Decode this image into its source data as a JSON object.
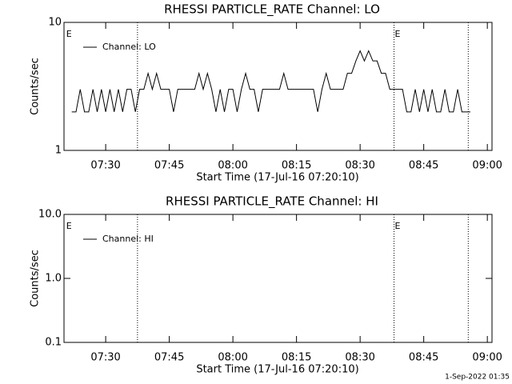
{
  "chart_data": [
    {
      "type": "line",
      "title": "RHESSI PARTICLE_RATE Channel: LO",
      "x_label": "Start Time (17-Jul-16 07:20:10)",
      "y_label": "Counts/sec",
      "log_y": true,
      "ylim": [
        1,
        10
      ],
      "yticks": [
        1,
        10
      ],
      "xlim": [
        440.17,
        541.1
      ],
      "xticks": [
        {
          "value": 450,
          "label": "07:30"
        },
        {
          "value": 465,
          "label": "07:45"
        },
        {
          "value": 480,
          "label": "08:00"
        },
        {
          "value": 495,
          "label": "08:15"
        },
        {
          "value": 510,
          "label": "08:30"
        },
        {
          "value": 525,
          "label": "08:45"
        },
        {
          "value": 540,
          "label": "09:00"
        }
      ],
      "vlines": [
        457.5,
        518,
        535.5
      ],
      "event_labels": [
        {
          "x": 440.5,
          "label": "E"
        },
        {
          "x": 518,
          "label": "E"
        }
      ],
      "legend": "upper left",
      "x": [
        442,
        443,
        444,
        445,
        446,
        447,
        448,
        449,
        450,
        451,
        452,
        453,
        454,
        455,
        456,
        457,
        458,
        459,
        460,
        461,
        462,
        463,
        464,
        465,
        466,
        467,
        468,
        469,
        470,
        471,
        472,
        473,
        474,
        475,
        476,
        477,
        478,
        479,
        480,
        481,
        482,
        483,
        484,
        485,
        486,
        487,
        488,
        489,
        490,
        491,
        492,
        493,
        494,
        495,
        496,
        497,
        498,
        499,
        500,
        501,
        502,
        503,
        504,
        505,
        506,
        507,
        508,
        509,
        510,
        511,
        512,
        513,
        514,
        515,
        516,
        517,
        518,
        519,
        520,
        521,
        522,
        523,
        524,
        525,
        526,
        527,
        528,
        529,
        530,
        531,
        532,
        533,
        534,
        535,
        536
      ],
      "series": [
        {
          "name": "Channel: LO",
          "color": "#000000",
          "values": [
            2,
            2,
            3,
            2,
            2,
            3,
            2,
            3,
            2,
            3,
            2,
            3,
            2,
            3,
            3,
            2,
            3,
            3,
            4,
            3,
            4,
            3,
            3,
            3,
            2,
            3,
            3,
            3,
            3,
            3,
            4,
            3,
            4,
            3,
            2,
            3,
            2,
            3,
            3,
            2,
            3,
            4,
            3,
            3,
            2,
            3,
            3,
            3,
            3,
            3,
            4,
            3,
            3,
            3,
            3,
            3,
            3,
            3,
            2,
            3,
            4,
            3,
            3,
            3,
            3,
            4,
            4,
            5,
            6,
            5,
            6,
            5,
            5,
            4,
            4,
            3,
            3,
            3,
            3,
            2,
            2,
            3,
            2,
            3,
            2,
            3,
            2,
            2,
            3,
            2,
            2,
            3,
            2,
            2,
            2
          ]
        }
      ]
    },
    {
      "type": "line",
      "title": "RHESSI PARTICLE_RATE Channel: HI",
      "x_label": "Start Time (17-Jul-16 07:20:10)",
      "y_label": "Counts/sec",
      "log_y": true,
      "ylim": [
        0.1,
        10
      ],
      "yticks": [
        0.1,
        {
          "value": 1,
          "label": "1.0"
        },
        {
          "value": 10,
          "label": "10.0"
        }
      ],
      "xlim": [
        440.17,
        541.1
      ],
      "xticks": [
        {
          "value": 450,
          "label": "07:30"
        },
        {
          "value": 465,
          "label": "07:45"
        },
        {
          "value": 480,
          "label": "08:00"
        },
        {
          "value": 495,
          "label": "08:15"
        },
        {
          "value": 510,
          "label": "08:30"
        },
        {
          "value": 525,
          "label": "08:45"
        },
        {
          "value": 540,
          "label": "09:00"
        }
      ],
      "vlines": [
        457.5,
        518,
        535.5
      ],
      "event_labels": [
        {
          "x": 440.5,
          "label": "E"
        },
        {
          "x": 518,
          "label": "E"
        }
      ],
      "legend": "upper left",
      "x": [],
      "series": [
        {
          "name": "Channel: HI",
          "color": "#000000",
          "values": []
        }
      ]
    }
  ],
  "footer": "1-Sep-2022 01:35"
}
